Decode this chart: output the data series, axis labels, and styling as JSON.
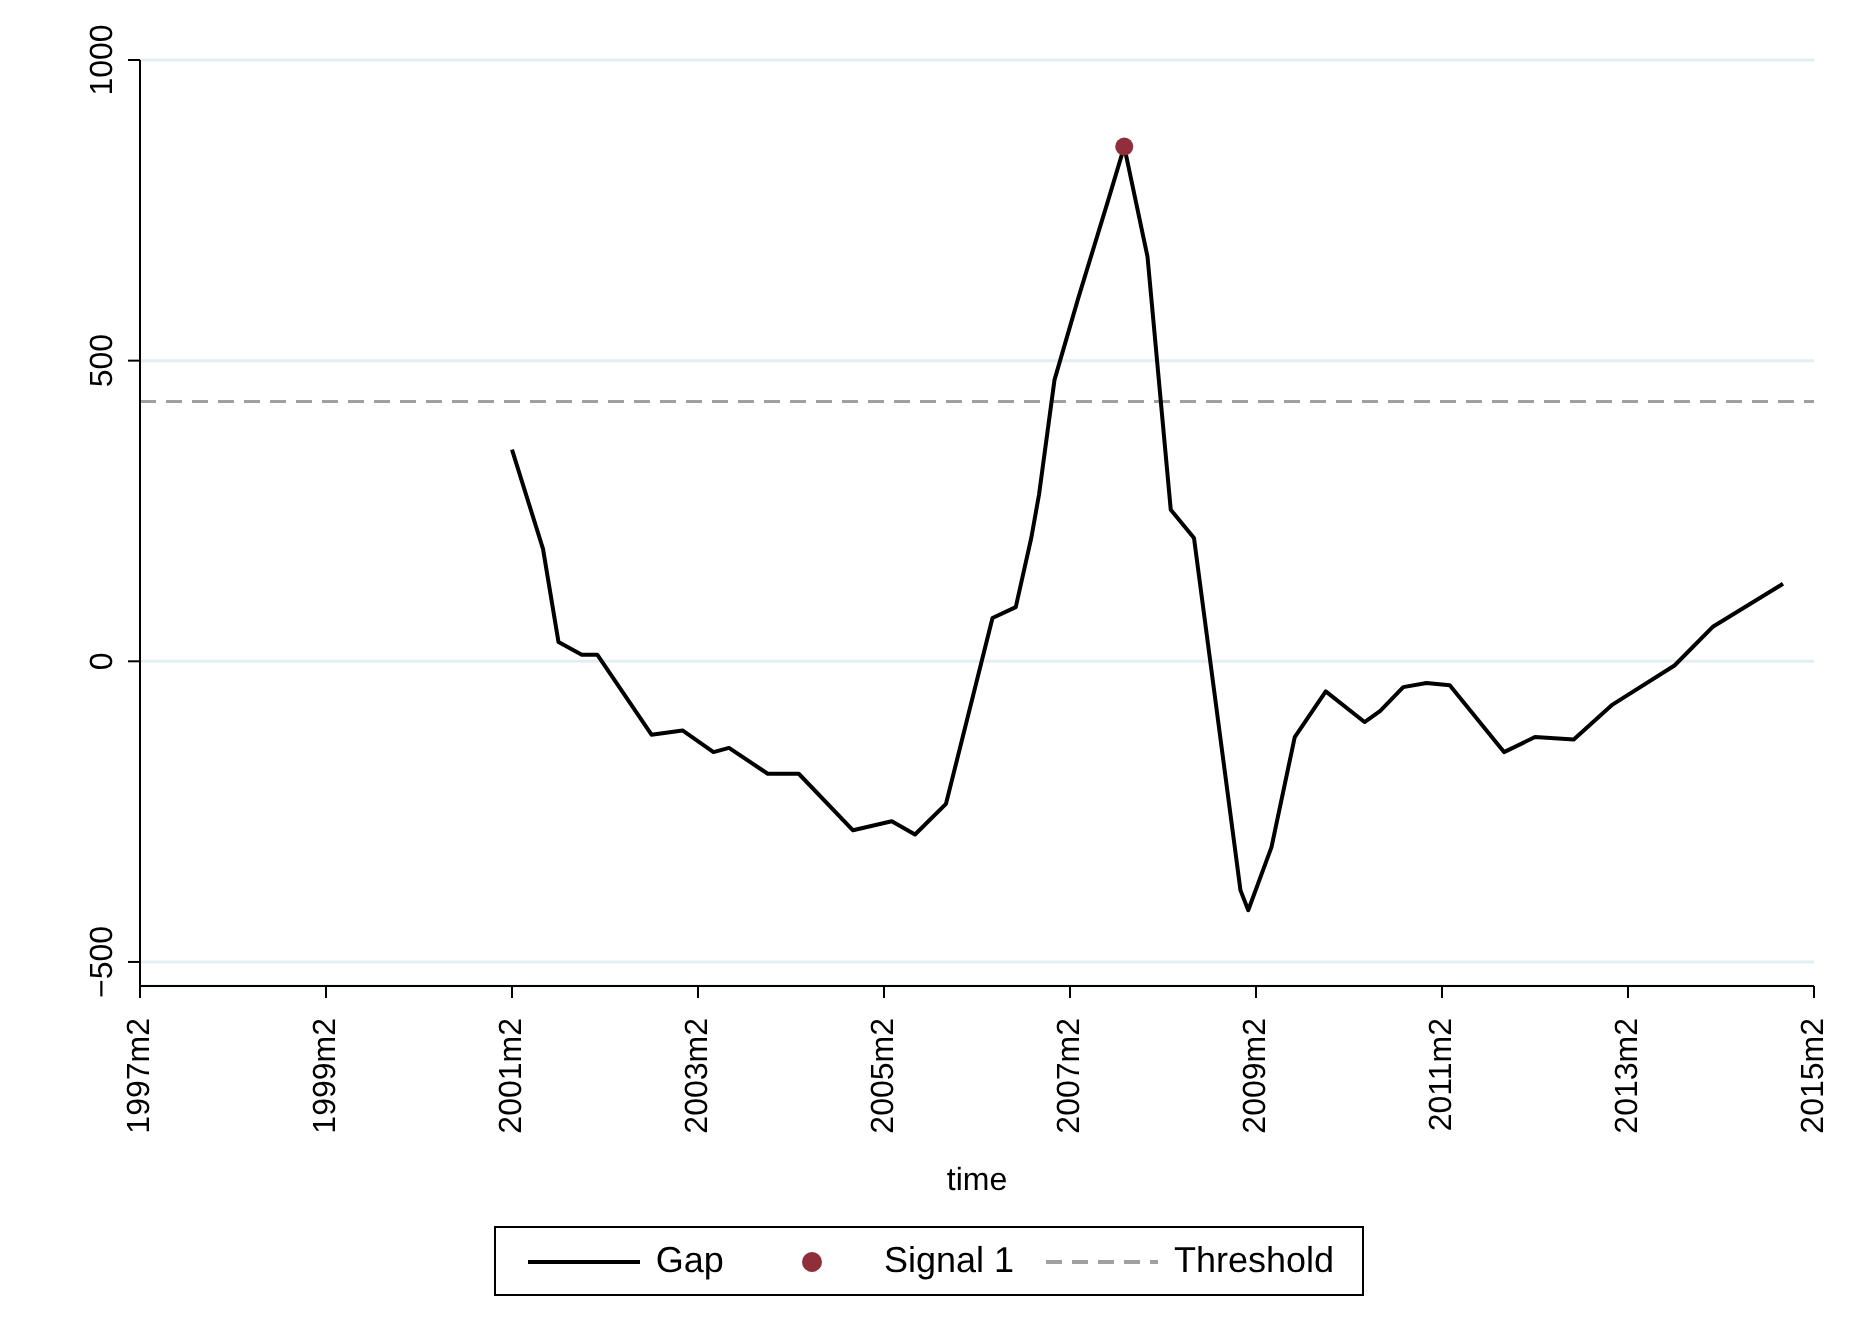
{
  "chart_data": {
    "type": "line",
    "xlabel": "time",
    "xlim": [
      "1997-02",
      "2015-02"
    ],
    "xticks": [
      {
        "value": "1997-02",
        "label": "1997m2"
      },
      {
        "value": "1999-02",
        "label": "1999m2"
      },
      {
        "value": "2001-02",
        "label": "2001m2"
      },
      {
        "value": "2003-02",
        "label": "2003m2"
      },
      {
        "value": "2005-02",
        "label": "2005m2"
      },
      {
        "value": "2007-02",
        "label": "2007m2"
      },
      {
        "value": "2009-02",
        "label": "2009m2"
      },
      {
        "value": "2011-02",
        "label": "2011m2"
      },
      {
        "value": "2013-02",
        "label": "2013m2"
      },
      {
        "value": "2015-02",
        "label": "2015m2"
      }
    ],
    "ylim": [
      -540,
      1000
    ],
    "yticks": [
      {
        "value": -500,
        "label": "−500"
      },
      0,
      500,
      1000
    ],
    "grid": "y",
    "legend": "bottom",
    "series": [
      {
        "name": "Gap",
        "color": "#000000",
        "marker": "none",
        "line_style": "solid",
        "x": [
          "2001-02",
          "2001-06",
          "2001-08",
          "2001-11",
          "2002-01",
          "2002-08",
          "2002-12",
          "2003-04",
          "2003-06",
          "2003-11",
          "2004-03",
          "2004-10",
          "2005-03",
          "2005-06",
          "2005-10",
          "2006-04",
          "2006-07",
          "2006-09",
          "2006-10",
          "2006-12",
          "2007-03",
          "2007-07",
          "2007-09",
          "2007-12",
          "2008-03",
          "2008-06",
          "2008-12",
          "2009-01",
          "2009-04",
          "2009-07",
          "2009-11",
          "2010-04",
          "2010-06",
          "2010-09",
          "2010-12",
          "2011-03",
          "2011-10",
          "2012-02",
          "2012-07",
          "2012-12",
          "2013-08",
          "2014-01",
          "2014-10"
        ],
        "values": [
          352,
          187,
          32,
          11,
          11,
          -122,
          -115,
          -151,
          -144,
          -187,
          -187,
          -281,
          -266,
          -288,
          -237,
          72,
          90,
          205,
          277,
          468,
          601,
          770,
          856,
          673,
          252,
          205,
          -381,
          -414,
          -309,
          -126,
          -50,
          -101,
          -83,
          -43,
          -36,
          -40,
          -151,
          -126,
          -130,
          -72,
          -7,
          58,
          129
        ]
      },
      {
        "name": "Signal 1",
        "type": "scatter",
        "color": "#8f2f3b",
        "marker": "circle",
        "x": [
          "2007-09"
        ],
        "values": [
          856
        ]
      }
    ],
    "ref_lines": [
      {
        "axis": "y",
        "value": 432,
        "label": "Threshold",
        "color": "#a0a0a0",
        "line_style": "dashed"
      }
    ]
  }
}
